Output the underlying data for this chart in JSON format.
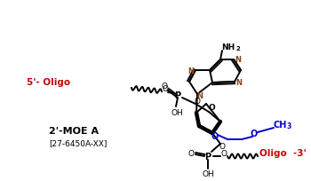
{
  "bg_color": "#ffffff",
  "bond_color": "#000000",
  "red_color": "#cc0000",
  "blue_color": "#0000cc",
  "brown_color": "#8B4513",
  "figsize": [
    3.5,
    2.05
  ],
  "dpi": 100,
  "title": "2'-MOE A",
  "catalog": "[27-6450A-XX]",
  "NH2_label": "NH",
  "NH2_sub": "2",
  "N_labels": [
    "N",
    "N",
    "N",
    "N"
  ],
  "O_label": "O",
  "P_label": "P",
  "OH_label": "OH",
  "oligo5_label": "5'- Oligo",
  "oligo3_label": "Oligo  -3'",
  "CH3_label": "CH",
  "CH3_sub": "3"
}
